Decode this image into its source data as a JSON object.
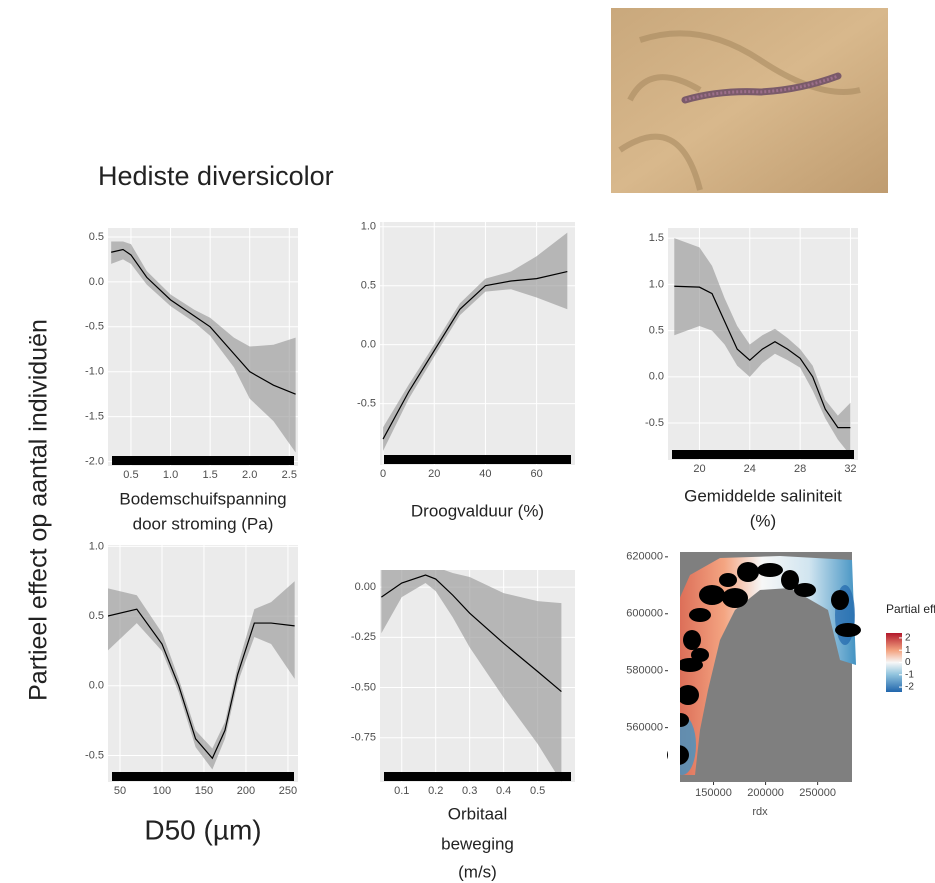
{
  "title": "Hediste diversicolor",
  "ylabel": "Partieel effect op aantal individuën",
  "chart_data": [
    {
      "type": "line",
      "xlabel": [
        "Bodemschuifspanning",
        "door stroming (Pa)"
      ],
      "x": [
        0.25,
        0.4,
        0.5,
        0.7,
        1.0,
        1.3,
        1.5,
        1.8,
        2.0,
        2.3,
        2.58
      ],
      "values": [
        0.33,
        0.36,
        0.3,
        0.05,
        -0.2,
        -0.38,
        -0.5,
        -0.8,
        -1.0,
        -1.15,
        -1.25
      ],
      "lower": [
        0.2,
        0.25,
        0.2,
        -0.03,
        -0.27,
        -0.45,
        -0.6,
        -0.95,
        -1.3,
        -1.55,
        -1.9
      ],
      "upper": [
        0.45,
        0.45,
        0.42,
        0.12,
        -0.14,
        -0.31,
        -0.4,
        -0.62,
        -0.72,
        -0.7,
        -0.62
      ],
      "xlim": [
        0.21,
        2.61
      ],
      "ylim": [
        -2.05,
        0.6
      ],
      "xticks": [
        {
          "value": 0.5,
          "label": "0.5"
        },
        {
          "value": 1.0,
          "label": "1.0"
        },
        {
          "value": 1.5,
          "label": "1.5"
        },
        {
          "value": 2.0,
          "label": "2.0"
        },
        {
          "value": 2.5,
          "label": "2.5"
        }
      ],
      "yticks": [
        {
          "value": 0.5,
          "label": "0.5"
        },
        {
          "value": 0.0,
          "label": "0.0"
        },
        {
          "value": -0.5,
          "label": "-0.5"
        },
        {
          "value": -1.0,
          "label": "-1.0"
        },
        {
          "value": -1.5,
          "label": "-1.5"
        },
        {
          "value": -2.0,
          "label": "-2.0"
        }
      ]
    },
    {
      "type": "line",
      "xlabel": [
        "Droogvalduur (%)"
      ],
      "x": [
        0,
        10,
        20,
        30,
        40,
        50,
        60,
        72
      ],
      "values": [
        -0.8,
        -0.4,
        -0.05,
        0.3,
        0.5,
        0.54,
        0.56,
        0.62
      ],
      "lower": [
        -0.9,
        -0.46,
        -0.1,
        0.25,
        0.45,
        0.47,
        0.4,
        0.3
      ],
      "upper": [
        -0.7,
        -0.34,
        0.0,
        0.35,
        0.56,
        0.62,
        0.75,
        0.95
      ],
      "xlim": [
        -1.2,
        75
      ],
      "ylim": [
        -1.02,
        1.04
      ],
      "xticks": [
        0,
        20,
        40,
        60
      ],
      "yticks": [
        {
          "value": 1.0,
          "label": "1.0"
        },
        0.5,
        {
          "value": 0.0,
          "label": "0.0"
        },
        -0.5
      ]
    },
    {
      "type": "line",
      "xlabel": [
        "Gemiddelde saliniteit",
        "(%)"
      ],
      "x": [
        18,
        20,
        21,
        22,
        23,
        24,
        25,
        26,
        27,
        28,
        29,
        30,
        31,
        32
      ],
      "values": [
        0.98,
        0.97,
        0.9,
        0.6,
        0.3,
        0.18,
        0.3,
        0.38,
        0.3,
        0.2,
        0.0,
        -0.35,
        -0.55,
        -0.55
      ],
      "lower": [
        0.45,
        0.55,
        0.5,
        0.35,
        0.12,
        0.0,
        0.15,
        0.25,
        0.18,
        0.1,
        -0.15,
        -0.45,
        -0.68,
        -0.85
      ],
      "upper": [
        1.5,
        1.4,
        1.2,
        0.85,
        0.55,
        0.35,
        0.45,
        0.52,
        0.42,
        0.3,
        0.12,
        -0.25,
        -0.42,
        -0.28
      ],
      "xlim": [
        17.5,
        32.6
      ],
      "ylim": [
        -0.9,
        1.61
      ],
      "xticks": [
        20,
        24,
        28,
        32
      ],
      "yticks": [
        1.5,
        {
          "value": 1.0,
          "label": "1.0"
        },
        0.5,
        {
          "value": 0.0,
          "label": "0.0"
        },
        -0.5
      ]
    },
    {
      "type": "line",
      "xlabel": [
        "D50 (µm)"
      ],
      "big_label": true,
      "x": [
        35,
        70,
        100,
        120,
        140,
        160,
        175,
        190,
        210,
        230,
        258
      ],
      "values": [
        0.5,
        0.55,
        0.3,
        0.0,
        -0.38,
        -0.52,
        -0.32,
        0.08,
        0.45,
        0.45,
        0.43
      ],
      "lower": [
        0.25,
        0.45,
        0.25,
        -0.05,
        -0.44,
        -0.6,
        -0.38,
        0.02,
        0.35,
        0.3,
        0.05
      ],
      "upper": [
        0.7,
        0.65,
        0.38,
        0.05,
        -0.32,
        -0.45,
        -0.26,
        0.14,
        0.55,
        0.6,
        0.75
      ],
      "xlim": [
        35.7,
        262
      ],
      "ylim": [
        -0.69,
        1.01
      ],
      "xticks": [
        50,
        100,
        150,
        200,
        250
      ],
      "yticks": [
        {
          "value": 1.0,
          "label": "1.0"
        },
        0.5,
        {
          "value": 0.0,
          "label": "0.0"
        },
        -0.5
      ]
    },
    {
      "type": "line",
      "xlabel": [
        "Orbitaal",
        "beweging",
        "(m/s)"
      ],
      "x": [
        0.04,
        0.1,
        0.17,
        0.2,
        0.25,
        0.3,
        0.4,
        0.5,
        0.57
      ],
      "values": [
        -0.05,
        0.02,
        0.06,
        0.04,
        -0.04,
        -0.13,
        -0.28,
        -0.42,
        -0.52
      ],
      "lower": [
        -0.23,
        -0.05,
        0.02,
        -0.02,
        -0.15,
        -0.3,
        -0.55,
        -0.78,
        -0.97
      ],
      "upper": [
        0.1,
        0.09,
        0.1,
        0.1,
        0.07,
        0.05,
        -0.03,
        -0.07,
        -0.08
      ],
      "xlim": [
        0.036,
        0.61
      ],
      "ylim": [
        -0.97,
        0.085
      ],
      "xticks": [
        0.1,
        0.2,
        0.3,
        0.4,
        0.5
      ],
      "yticks": [
        {
          "value": 0.0,
          "label": "0.00"
        },
        -0.25,
        {
          "value": -0.5,
          "label": "-0.50"
        },
        -0.75
      ]
    },
    {
      "type": "map",
      "xlabel": [
        "rdx"
      ],
      "xlim": [
        117800,
        283000
      ],
      "ylim": [
        540900,
        621700
      ],
      "xticks": [
        150000,
        200000,
        250000
      ],
      "yticks": [
        620000,
        600000,
        580000,
        560000
      ],
      "legend_title": "Partial effect",
      "legend_lim": [
        -2.4,
        2.4
      ],
      "legend_ticks": [
        2,
        1,
        0,
        -1,
        -2
      ]
    }
  ]
}
